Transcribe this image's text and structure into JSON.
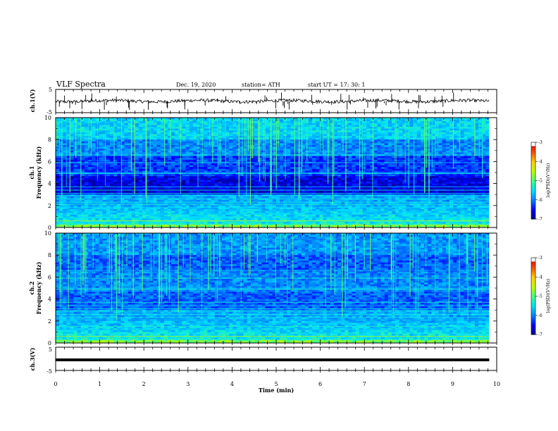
{
  "header": {
    "title": "VLF Spectra",
    "date": "Dec. 19, 2020",
    "station": "station= ATH",
    "start": "start  UT =   17: 30: 1"
  },
  "chart_data": [
    {
      "id": "ch1_waveform",
      "type": "line",
      "ylabel": "ch.1(V)",
      "ylim": [
        -5,
        5
      ],
      "yticks": [
        "5",
        "-5"
      ],
      "xlim": [
        0,
        10
      ]
    },
    {
      "id": "ch1_spectrogram",
      "type": "heatmap",
      "ylabel_channel": "ch.1",
      "ylabel": "Frequency (kHz)",
      "ylim": [
        0,
        10
      ],
      "yticks": [
        0,
        2,
        4,
        6,
        8,
        10
      ],
      "xlim": [
        0,
        10
      ],
      "data_end_min": 9.83,
      "colorbar": {
        "label": "log(PSD)(V²/Hz)",
        "range": [
          -7,
          -3
        ],
        "ticks": [
          "-3",
          "-4",
          "-5",
          "-6",
          "-7"
        ]
      },
      "emission_bands_khz": [
        0.3,
        0.6,
        0.9,
        1.2,
        1.5,
        1.8,
        2.1,
        2.3,
        2.6,
        2.9,
        3.1,
        3.4,
        3.7,
        4.9,
        5.0,
        5.9,
        6.6
      ]
    },
    {
      "id": "ch2_spectrogram",
      "type": "heatmap",
      "ylabel_channel": "ch.2",
      "ylabel": "Frequency (kHz)",
      "ylim": [
        0,
        10
      ],
      "yticks": [
        0,
        2,
        4,
        6,
        8,
        10
      ],
      "xlim": [
        0,
        10
      ],
      "data_end_min": 9.83,
      "colorbar": {
        "label": "log(PSD)(V²/Hz)",
        "range": [
          -7,
          -3
        ],
        "ticks": [
          "-3",
          "-4",
          "-5",
          "-6",
          "-7"
        ]
      },
      "emission_bands_khz": [
        0.3,
        0.6,
        0.9,
        1.2,
        1.5,
        1.8,
        2.1,
        2.3,
        2.6,
        2.9,
        3.1,
        3.4,
        3.7,
        4.9,
        5.0,
        5.9,
        6.6
      ]
    },
    {
      "id": "ch3_waveform",
      "type": "line",
      "ylabel": "ch.3(V)",
      "ylim": [
        -5,
        5
      ],
      "yticks": [
        "5",
        "-5"
      ],
      "xlim": [
        0,
        10
      ],
      "xlabel": "Time (min)",
      "xticks": [
        0,
        1,
        2,
        3,
        4,
        5,
        6,
        7,
        8,
        9,
        10
      ]
    }
  ],
  "colors": {
    "colormap": [
      "#00007f",
      "#0000ff",
      "#0080ff",
      "#00e0ff",
      "#40ff80",
      "#c0ff00",
      "#ffd000",
      "#ff5000",
      "#d00000",
      "#ffffff"
    ]
  }
}
